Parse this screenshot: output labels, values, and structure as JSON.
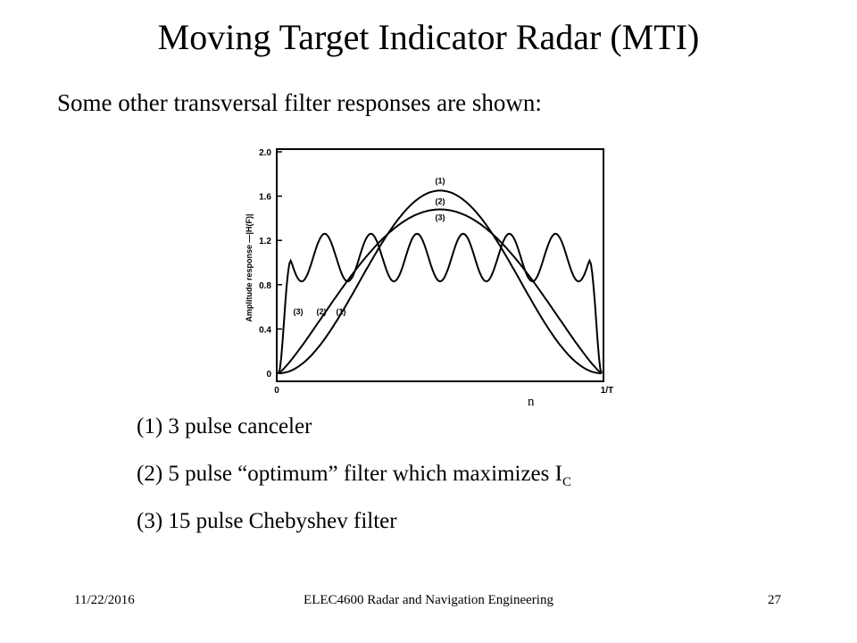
{
  "slide": {
    "title": "Moving Target Indicator Radar (MTI)",
    "subtitle": "Some other transversal filter responses are shown:",
    "n_label": "n",
    "legend": [
      {
        "number": "(1)",
        "text": "3 pulse canceler"
      },
      {
        "number": "(2)",
        "text": "5 pulse “optimum” filter which maximizes I",
        "sub": "C"
      },
      {
        "number": "(3)",
        "text": "15 pulse Chebyshev filter"
      }
    ]
  },
  "chart_data": {
    "type": "line",
    "ylabel": "Amplitude response —|H(F)|",
    "ylim": [
      0,
      2.0
    ],
    "y_ticks": [
      "2.0",
      "1.6",
      "1.2",
      "0.8",
      "0.4",
      "0"
    ],
    "x_ticks": [
      "0",
      "1/T"
    ],
    "grid": false,
    "series_labels": [
      "(1)",
      "(2)",
      "(3)"
    ],
    "series": [
      {
        "name": "(1)",
        "peak": 1.65,
        "description_points": [
          [
            0,
            0
          ],
          [
            0.5,
            1.65
          ],
          [
            1,
            0
          ]
        ]
      },
      {
        "name": "(2)",
        "peak": 1.48
      },
      {
        "name": "(3)",
        "ripple_max": 1.26,
        "ripple_min": 0.83
      }
    ]
  },
  "footer": {
    "date": "11/22/2016",
    "course": "ELEC4600 Radar and Navigation Engineering",
    "page": "27"
  }
}
